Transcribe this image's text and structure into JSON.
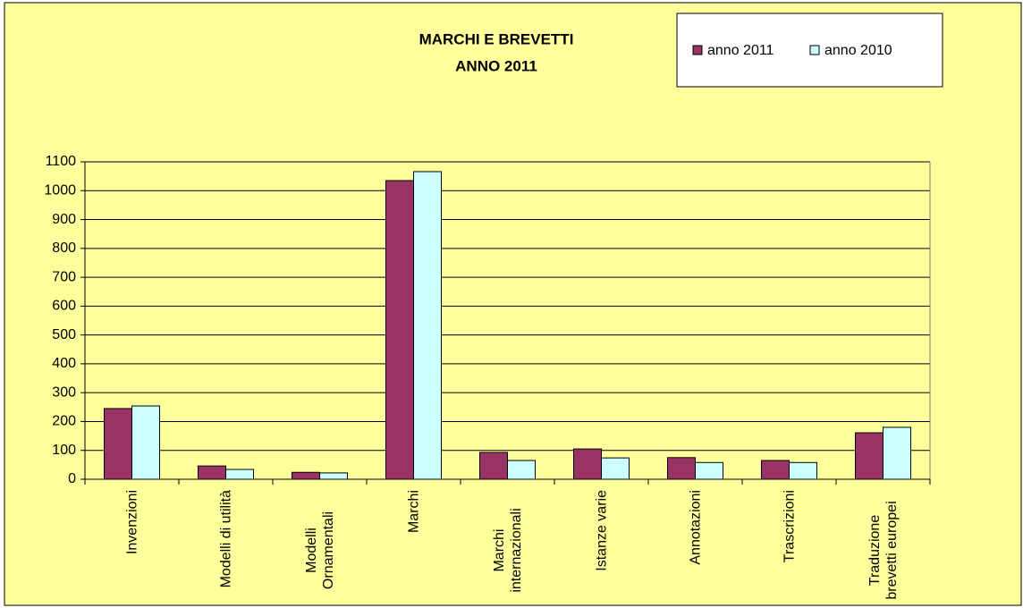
{
  "chart_data": {
    "type": "bar",
    "title": "MARCHI E BREVETTI",
    "subtitle": "ANNO 2011",
    "categories": [
      "Invenzioni",
      "Modelli di utilità",
      "Modelli Ornamentali",
      "Marchi",
      "Marchi internazionali",
      "Istanze varie",
      "Annotazioni",
      "Trascrizioni",
      "Traduzione brevetti europei"
    ],
    "series": [
      {
        "name": "anno 2011",
        "color": "#993366",
        "values": [
          245,
          46,
          24,
          1035,
          93,
          105,
          75,
          65,
          161
        ]
      },
      {
        "name": "anno 2010",
        "color": "#ccffff",
        "values": [
          254,
          34,
          22,
          1066,
          65,
          74,
          58,
          58,
          180
        ]
      }
    ],
    "ylim": [
      0,
      1100
    ],
    "yticks": [
      0,
      100,
      200,
      300,
      400,
      500,
      600,
      700,
      800,
      900,
      1000,
      1100
    ],
    "grid": true,
    "legend": "top-right"
  }
}
